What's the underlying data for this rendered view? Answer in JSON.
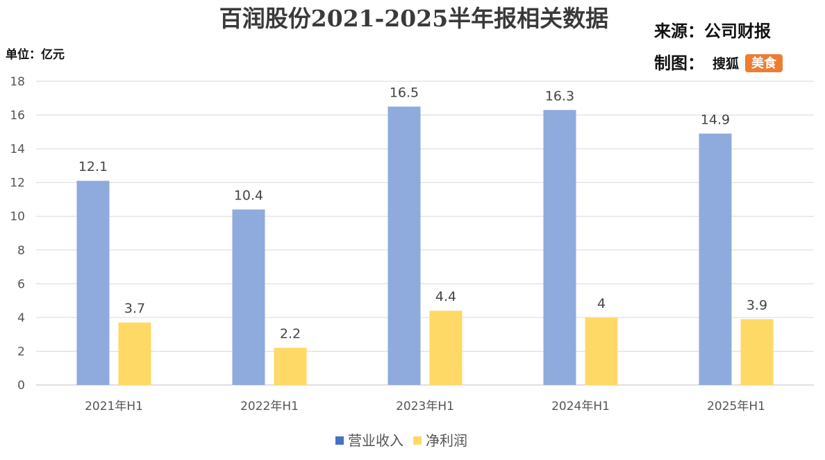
{
  "meta": {
    "source": "来源：公司财报",
    "made_by_label": "制图：",
    "brand_name": "搜狐",
    "brand_badge": "美食",
    "unit": "单位：亿元"
  },
  "colors": {
    "revenue": "#8FAADC",
    "net_profit": "#FFD966",
    "legend_revenue": "#4472C4",
    "badge": "#ED7D31",
    "grid": "#D9D9D9",
    "axis": "#BFBFBF"
  },
  "chart_data": {
    "type": "bar",
    "title": "百润股份2021-2025半年报相关数据",
    "categories": [
      "2021年H1",
      "2022年H1",
      "2023年H1",
      "2024年H1",
      "2025年H1"
    ],
    "series": [
      {
        "name": "营业收入",
        "values": [
          12.1,
          10.4,
          16.5,
          16.3,
          14.9
        ],
        "labels": [
          "12.1",
          "10.4",
          "16.5",
          "16.3",
          "14.9"
        ]
      },
      {
        "name": "净利润",
        "values": [
          3.7,
          2.2,
          4.4,
          4,
          3.9
        ],
        "labels": [
          "3.7",
          "2.2",
          "4.4",
          "4",
          "3.9"
        ]
      }
    ],
    "ylim": [
      0,
      18
    ],
    "yticks": [
      "0",
      "2",
      "4",
      "6",
      "8",
      "10",
      "12",
      "14",
      "16",
      "18"
    ],
    "grid": true,
    "legend_position": "bottom",
    "data_labels": true
  }
}
